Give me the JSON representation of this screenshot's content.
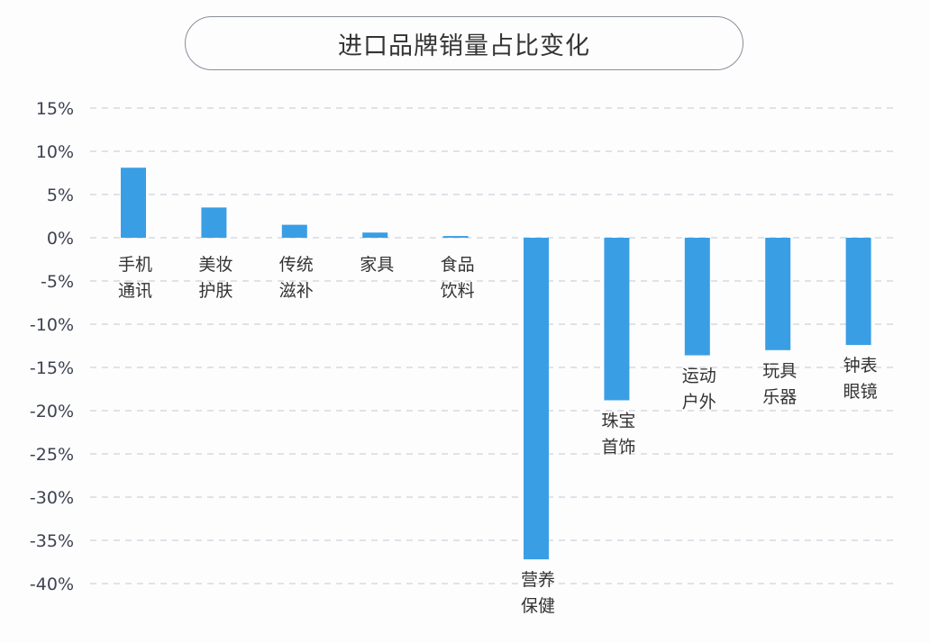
{
  "chart_data": {
    "type": "bar",
    "title": "进口品牌销量占比变化",
    "xlabel": "",
    "ylabel": "",
    "ylim": [
      -40,
      15
    ],
    "yticks": [
      15,
      10,
      5,
      0,
      -5,
      -10,
      -15,
      -20,
      -25,
      -30,
      -35,
      -40
    ],
    "ytick_labels": [
      "15%",
      "10%",
      "5%",
      "0%",
      "-5%",
      "-10%",
      "-15%",
      "-20%",
      "-25%",
      "-30%",
      "-35%",
      "-40%"
    ],
    "grid": true,
    "categories": [
      [
        "手机",
        "通讯"
      ],
      [
        "美妆",
        "护肤"
      ],
      [
        "传统",
        "滋补"
      ],
      [
        "家具"
      ],
      [
        "食品",
        "饮料"
      ],
      [
        "营养",
        "保健"
      ],
      [
        "珠宝",
        "首饰"
      ],
      [
        "运动",
        "户外"
      ],
      [
        "玩具",
        "乐器"
      ],
      [
        "钟表",
        "眼镜"
      ]
    ],
    "values": [
      8.1,
      3.5,
      1.5,
      0.6,
      0.2,
      -37.2,
      -18.8,
      -13.6,
      -13.0,
      -12.4
    ],
    "bar_color": "#3a9ee4",
    "grid_color": "#cfd3da"
  }
}
